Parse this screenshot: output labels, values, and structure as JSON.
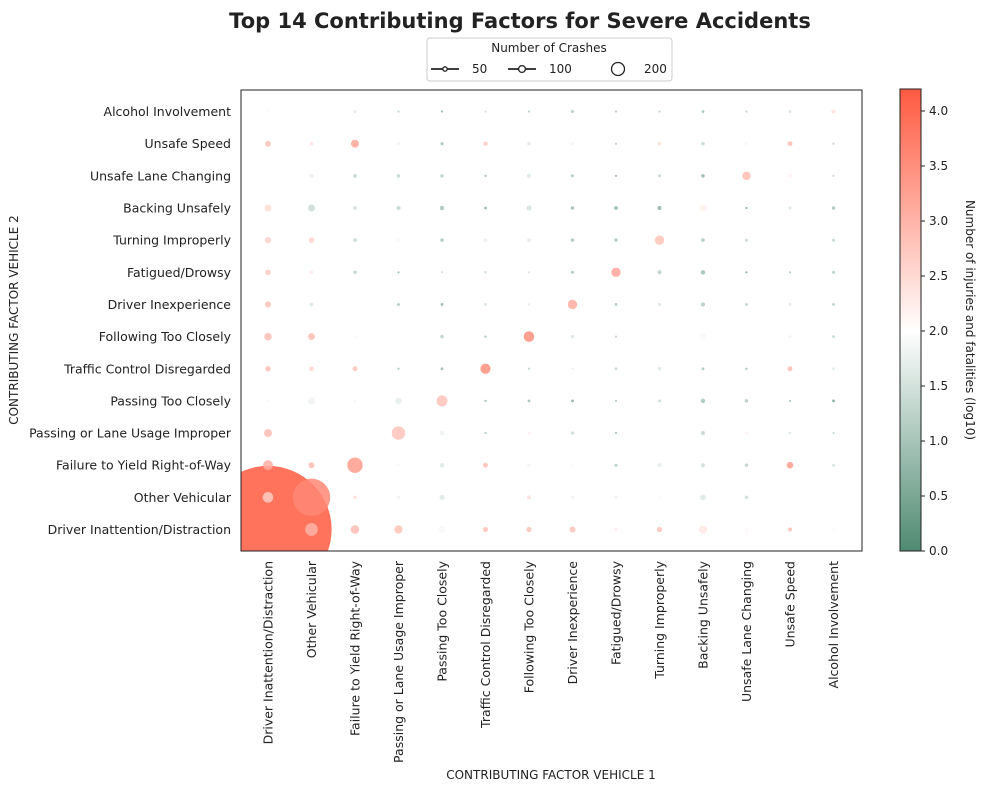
{
  "chart_data": {
    "type": "scatter",
    "title": "Top 14 Contributing Factors for Severe Accidents",
    "xlabel": "CONTRIBUTING FACTOR VEHICLE 1",
    "ylabel": "CONTRIBUTING FACTOR VEHICLE 2",
    "x_categories": [
      "Driver Inattention/Distraction",
      "Other Vehicular",
      "Failure to Yield Right-of-Way",
      "Passing or Lane Usage Improper",
      "Passing Too Closely",
      "Traffic Control Disregarded",
      "Following Too Closely",
      "Driver Inexperience",
      "Fatigued/Drowsy",
      "Turning Improperly",
      "Backing Unsafely",
      "Unsafe Lane Changing",
      "Unsafe Speed",
      "Alcohol Involvement"
    ],
    "y_categories": [
      "Driver Inattention/Distraction",
      "Other Vehicular",
      "Failure to Yield Right-of-Way",
      "Passing or Lane Usage Improper",
      "Passing Too Closely",
      "Traffic Control Disregarded",
      "Following Too Closely",
      "Driver Inexperience",
      "Fatigued/Drowsy",
      "Turning Improperly",
      "Backing Unsafely",
      "Unsafe Lane Changing",
      "Unsafe Speed",
      "Alcohol Involvement"
    ],
    "size_legend": {
      "title": "Number of Crashes",
      "entries": [
        50,
        100,
        200
      ]
    },
    "colorbar": {
      "label": "Number of injuries and fatalities (log10)",
      "min": 0.0,
      "max": 4.2,
      "ticks": [
        "0.0",
        "0.5",
        "1.0",
        "1.5",
        "2.0",
        "2.5",
        "3.0",
        "3.5",
        "4.0"
      ],
      "colors": [
        "#4f8a72",
        "#ffffff",
        "#ff5a40"
      ]
    },
    "legend_placement": "top-center",
    "grid": false,
    "cells": [
      [
        0,
        0,
        4050,
        4.2
      ],
      [
        1,
        0,
        40,
        3.0
      ],
      [
        2,
        0,
        18,
        2.9
      ],
      [
        3,
        0,
        17,
        2.8
      ],
      [
        4,
        0,
        12,
        1.9
      ],
      [
        5,
        0,
        6,
        2.9
      ],
      [
        6,
        0,
        7,
        2.8
      ],
      [
        7,
        0,
        9,
        2.8
      ],
      [
        8,
        0,
        3,
        2.2
      ],
      [
        9,
        0,
        7,
        2.8
      ],
      [
        10,
        0,
        18,
        2.3
      ],
      [
        11,
        0,
        3,
        2.1
      ],
      [
        12,
        0,
        4,
        2.9
      ],
      [
        13,
        0,
        2,
        2.1
      ],
      [
        0,
        1,
        28,
        2.7
      ],
      [
        1,
        1,
        350,
        3.6
      ],
      [
        2,
        1,
        3,
        2.5
      ],
      [
        3,
        1,
        3,
        1.8
      ],
      [
        4,
        1,
        6,
        1.6
      ],
      [
        5,
        1,
        1,
        2.1
      ],
      [
        6,
        1,
        4,
        2.4
      ],
      [
        7,
        1,
        3,
        1.8
      ],
      [
        8,
        1,
        4,
        1.8
      ],
      [
        9,
        1,
        2,
        2.1
      ],
      [
        10,
        1,
        8,
        1.6
      ],
      [
        11,
        1,
        3,
        1.4
      ],
      [
        0,
        2,
        24,
        3.1
      ],
      [
        1,
        2,
        9,
        2.9
      ],
      [
        2,
        2,
        60,
        3.3
      ],
      [
        3,
        2,
        2,
        2.1
      ],
      [
        4,
        2,
        5,
        1.6
      ],
      [
        5,
        2,
        6,
        2.9
      ],
      [
        6,
        2,
        3,
        1.8
      ],
      [
        7,
        2,
        2,
        2.1
      ],
      [
        8,
        2,
        2,
        1.0
      ],
      [
        9,
        2,
        5,
        1.7
      ],
      [
        10,
        2,
        4,
        1.4
      ],
      [
        11,
        2,
        3,
        1.2
      ],
      [
        12,
        2,
        11,
        3.3
      ],
      [
        13,
        2,
        2,
        1.5
      ],
      [
        0,
        3,
        16,
        2.9
      ],
      [
        3,
        3,
        45,
        2.8
      ],
      [
        4,
        3,
        6,
        1.8
      ],
      [
        5,
        3,
        1,
        1.0
      ],
      [
        6,
        3,
        2,
        2.2
      ],
      [
        7,
        3,
        3,
        1.4
      ],
      [
        8,
        3,
        1,
        0.8
      ],
      [
        10,
        3,
        4,
        1.3
      ],
      [
        11,
        3,
        2,
        2.2
      ],
      [
        12,
        3,
        2,
        1.6
      ],
      [
        13,
        3,
        1,
        1.3
      ],
      [
        0,
        4,
        1,
        2.2
      ],
      [
        1,
        4,
        12,
        1.8
      ],
      [
        2,
        4,
        3,
        1.9
      ],
      [
        3,
        4,
        10,
        1.7
      ],
      [
        4,
        4,
        30,
        2.8
      ],
      [
        5,
        4,
        1,
        0.8
      ],
      [
        6,
        4,
        2,
        0.9
      ],
      [
        7,
        4,
        2,
        0.6
      ],
      [
        8,
        4,
        0.3,
        1.0
      ],
      [
        9,
        4,
        2,
        1.3
      ],
      [
        10,
        4,
        5,
        1.0
      ],
      [
        11,
        4,
        3,
        1.1
      ],
      [
        12,
        4,
        1,
        1.0
      ],
      [
        13,
        4,
        2,
        0.5
      ],
      [
        0,
        5,
        7,
        2.9
      ],
      [
        1,
        5,
        5,
        2.6
      ],
      [
        2,
        5,
        6,
        2.8
      ],
      [
        3,
        5,
        1,
        1.0
      ],
      [
        4,
        5,
        2,
        0.8
      ],
      [
        5,
        5,
        26,
        3.5
      ],
      [
        6,
        5,
        1,
        1.2
      ],
      [
        7,
        5,
        1,
        1.7
      ],
      [
        8,
        5,
        2,
        1.3
      ],
      [
        9,
        5,
        3,
        1.6
      ],
      [
        10,
        5,
        2,
        1.0
      ],
      [
        11,
        5,
        1,
        0.8
      ],
      [
        12,
        5,
        6,
        2.9
      ],
      [
        13,
        5,
        2,
        1.6
      ],
      [
        0,
        6,
        14,
        2.9
      ],
      [
        1,
        6,
        12,
        2.9
      ],
      [
        2,
        6,
        3,
        2.1
      ],
      [
        4,
        6,
        3,
        1.2
      ],
      [
        5,
        6,
        1,
        0.9
      ],
      [
        6,
        6,
        28,
        3.5
      ],
      [
        7,
        6,
        3,
        1.6
      ],
      [
        8,
        6,
        0.4,
        1.2
      ],
      [
        10,
        6,
        11,
        1.9
      ],
      [
        12,
        6,
        2,
        1.8
      ],
      [
        13,
        6,
        2,
        1.3
      ],
      [
        0,
        7,
        10,
        2.8
      ],
      [
        1,
        7,
        4,
        1.6
      ],
      [
        2,
        7,
        1,
        2.1
      ],
      [
        3,
        7,
        2,
        1.0
      ],
      [
        4,
        7,
        2,
        0.7
      ],
      [
        5,
        7,
        2,
        1.5
      ],
      [
        6,
        7,
        1,
        1.6
      ],
      [
        7,
        7,
        22,
        3.1
      ],
      [
        8,
        7,
        2,
        1.0
      ],
      [
        9,
        7,
        2,
        1.5
      ],
      [
        10,
        7,
        4,
        1.1
      ],
      [
        11,
        7,
        2,
        1.2
      ],
      [
        12,
        7,
        2,
        1.6
      ],
      [
        13,
        7,
        2,
        1.2
      ],
      [
        0,
        8,
        8,
        2.7
      ],
      [
        1,
        8,
        3,
        2.3
      ],
      [
        2,
        8,
        3,
        1.2
      ],
      [
        3,
        8,
        0.5,
        0.8
      ],
      [
        4,
        8,
        1,
        1.4
      ],
      [
        5,
        8,
        2,
        1.5
      ],
      [
        6,
        8,
        1,
        1.5
      ],
      [
        7,
        8,
        2,
        0.9
      ],
      [
        8,
        8,
        22,
        3.2
      ],
      [
        9,
        8,
        4,
        1.2
      ],
      [
        10,
        8,
        5,
        0.9
      ],
      [
        11,
        8,
        1,
        0.5
      ],
      [
        12,
        8,
        1,
        1.0
      ],
      [
        13,
        8,
        2,
        1.0
      ],
      [
        0,
        9,
        10,
        2.6
      ],
      [
        1,
        9,
        8,
        2.6
      ],
      [
        2,
        9,
        4,
        1.4
      ],
      [
        3,
        9,
        3,
        2.1
      ],
      [
        4,
        9,
        3,
        1.0
      ],
      [
        5,
        9,
        3,
        1.7
      ],
      [
        6,
        9,
        3,
        1.6
      ],
      [
        7,
        9,
        3,
        1.0
      ],
      [
        8,
        9,
        3,
        1.0
      ],
      [
        9,
        9,
        22,
        2.8
      ],
      [
        10,
        9,
        3,
        1.0
      ],
      [
        11,
        9,
        2,
        1.2
      ],
      [
        12,
        9,
        1,
        2.1
      ],
      [
        13,
        9,
        2,
        1.2
      ],
      [
        0,
        10,
        12,
        2.5
      ],
      [
        1,
        10,
        12,
        1.4
      ],
      [
        2,
        10,
        3,
        1.4
      ],
      [
        3,
        10,
        4,
        1.3
      ],
      [
        4,
        10,
        5,
        1.0
      ],
      [
        5,
        10,
        2,
        0.7
      ],
      [
        6,
        10,
        7,
        1.5
      ],
      [
        7,
        10,
        3,
        0.9
      ],
      [
        8,
        10,
        4,
        0.9
      ],
      [
        9,
        10,
        4,
        0.7
      ],
      [
        10,
        10,
        11,
        2.2
      ],
      [
        11,
        10,
        1,
        0.6
      ],
      [
        12,
        10,
        3,
        1.6
      ],
      [
        13,
        10,
        3,
        1.0
      ],
      [
        0,
        11,
        1,
        2.1
      ],
      [
        1,
        11,
        4,
        1.7
      ],
      [
        2,
        11,
        3,
        1.2
      ],
      [
        3,
        11,
        3,
        1.3
      ],
      [
        4,
        11,
        3,
        1.2
      ],
      [
        5,
        11,
        1,
        0.8
      ],
      [
        6,
        11,
        4,
        1.6
      ],
      [
        7,
        11,
        2,
        1.0
      ],
      [
        8,
        11,
        1,
        0.8
      ],
      [
        9,
        11,
        2,
        1.2
      ],
      [
        10,
        11,
        3,
        0.7
      ],
      [
        11,
        11,
        18,
        2.9
      ],
      [
        12,
        11,
        3,
        2.2
      ],
      [
        13,
        11,
        1,
        1.3
      ],
      [
        0,
        12,
        9,
        2.8
      ],
      [
        1,
        12,
        3,
        2.4
      ],
      [
        2,
        12,
        16,
        3.2
      ],
      [
        3,
        12,
        2,
        1.8
      ],
      [
        4,
        12,
        2,
        0.8
      ],
      [
        5,
        12,
        5,
        2.7
      ],
      [
        6,
        12,
        3,
        1.6
      ],
      [
        7,
        12,
        2,
        1.8
      ],
      [
        8,
        12,
        0.5,
        1.1
      ],
      [
        9,
        12,
        3,
        2.5
      ],
      [
        10,
        12,
        3,
        1.3
      ],
      [
        11,
        12,
        3,
        1.9
      ],
      [
        12,
        12,
        6,
        2.9
      ],
      [
        13,
        12,
        1,
        1.2
      ],
      [
        0,
        13,
        2,
        2.1
      ],
      [
        1,
        13,
        2,
        2.0
      ],
      [
        2,
        13,
        2,
        1.6
      ],
      [
        3,
        13,
        1,
        1.2
      ],
      [
        4,
        13,
        1,
        0.6
      ],
      [
        5,
        13,
        1,
        1.4
      ],
      [
        6,
        13,
        1,
        1.1
      ],
      [
        7,
        13,
        2,
        1.0
      ],
      [
        8,
        13,
        1,
        1.0
      ],
      [
        9,
        13,
        1,
        1.1
      ],
      [
        10,
        13,
        2,
        0.9
      ],
      [
        11,
        13,
        1,
        1.1
      ],
      [
        12,
        13,
        2,
        1.5
      ],
      [
        13,
        13,
        4,
        2.4
      ]
    ]
  }
}
